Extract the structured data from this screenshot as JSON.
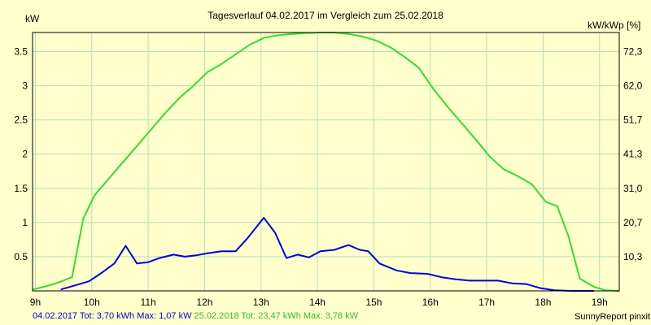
{
  "chart_data": {
    "type": "line",
    "title": "Tagesverlauf 04.02.2017 im Vergleich zum 25.02.2018",
    "ylabel_left": "kW",
    "ylabel_right": "kW/kWp [%]",
    "x_ticks": [
      "9h",
      "10h",
      "11h",
      "12h",
      "13h",
      "14h",
      "15h",
      "16h",
      "17h",
      "18h",
      "19h"
    ],
    "y_ticks_left": [
      "0.5",
      "1",
      "1.5",
      "2",
      "2.5",
      "3",
      "3.5"
    ],
    "y_ticks_right": [
      "10,3",
      "20,7",
      "31,0",
      "41,3",
      "51,7",
      "62,0",
      "72,3"
    ],
    "xlim": [
      8.95,
      19.35
    ],
    "ylim": [
      0,
      3.78
    ],
    "grid": true,
    "series": [
      {
        "name": "04.02.2017",
        "color": "#0000DD",
        "points": [
          [
            9.45,
            0.02
          ],
          [
            9.7,
            0.08
          ],
          [
            9.95,
            0.14
          ],
          [
            10.15,
            0.25
          ],
          [
            10.4,
            0.4
          ],
          [
            10.6,
            0.66
          ],
          [
            10.8,
            0.4
          ],
          [
            11.0,
            0.42
          ],
          [
            11.2,
            0.48
          ],
          [
            11.45,
            0.53
          ],
          [
            11.65,
            0.5
          ],
          [
            11.85,
            0.52
          ],
          [
            12.05,
            0.55
          ],
          [
            12.3,
            0.58
          ],
          [
            12.55,
            0.58
          ],
          [
            12.75,
            0.76
          ],
          [
            13.05,
            1.07
          ],
          [
            13.25,
            0.85
          ],
          [
            13.45,
            0.48
          ],
          [
            13.65,
            0.53
          ],
          [
            13.85,
            0.49
          ],
          [
            14.05,
            0.58
          ],
          [
            14.3,
            0.6
          ],
          [
            14.55,
            0.67
          ],
          [
            14.75,
            0.6
          ],
          [
            14.9,
            0.58
          ],
          [
            15.1,
            0.4
          ],
          [
            15.4,
            0.3
          ],
          [
            15.65,
            0.26
          ],
          [
            15.95,
            0.25
          ],
          [
            16.2,
            0.2
          ],
          [
            16.45,
            0.17
          ],
          [
            16.7,
            0.15
          ],
          [
            17.2,
            0.15
          ],
          [
            17.45,
            0.11
          ],
          [
            17.7,
            0.1
          ],
          [
            17.95,
            0.04
          ],
          [
            18.2,
            0.01
          ],
          [
            18.5,
            0.0
          ],
          [
            18.9,
            0.0
          ]
        ]
      },
      {
        "name": "25.02.2018",
        "color": "#33DD33",
        "points": [
          [
            8.95,
            0.02
          ],
          [
            9.15,
            0.06
          ],
          [
            9.4,
            0.12
          ],
          [
            9.65,
            0.2
          ],
          [
            9.85,
            1.06
          ],
          [
            10.05,
            1.4
          ],
          [
            10.3,
            1.64
          ],
          [
            10.55,
            1.88
          ],
          [
            10.8,
            2.12
          ],
          [
            11.05,
            2.36
          ],
          [
            11.3,
            2.6
          ],
          [
            11.55,
            2.82
          ],
          [
            11.8,
            3.0
          ],
          [
            12.05,
            3.2
          ],
          [
            12.3,
            3.32
          ],
          [
            12.55,
            3.46
          ],
          [
            12.8,
            3.6
          ],
          [
            13.05,
            3.7
          ],
          [
            13.3,
            3.74
          ],
          [
            13.55,
            3.76
          ],
          [
            13.8,
            3.77
          ],
          [
            14.05,
            3.78
          ],
          [
            14.3,
            3.78
          ],
          [
            14.55,
            3.76
          ],
          [
            14.8,
            3.72
          ],
          [
            15.05,
            3.66
          ],
          [
            15.3,
            3.56
          ],
          [
            15.55,
            3.42
          ],
          [
            15.8,
            3.26
          ],
          [
            16.05,
            2.96
          ],
          [
            16.3,
            2.7
          ],
          [
            16.55,
            2.46
          ],
          [
            16.8,
            2.22
          ],
          [
            17.05,
            1.97
          ],
          [
            17.3,
            1.78
          ],
          [
            17.55,
            1.68
          ],
          [
            17.8,
            1.56
          ],
          [
            18.05,
            1.3
          ],
          [
            18.25,
            1.24
          ],
          [
            18.45,
            0.8
          ],
          [
            18.65,
            0.18
          ],
          [
            18.9,
            0.06
          ],
          [
            19.1,
            0.01
          ],
          [
            19.35,
            0.0
          ]
        ]
      }
    ],
    "legend_text": [
      {
        "text": "04.02.2017 Tot: 3,70 kWh Max: 1,07 kW",
        "color": "#0000DD"
      },
      {
        "text": " 25.02.2018 Tot: 23,47 kWh Max: 3,78 kW",
        "color": "#33BB33"
      }
    ],
    "footer": "SunnyReport pinxit"
  }
}
